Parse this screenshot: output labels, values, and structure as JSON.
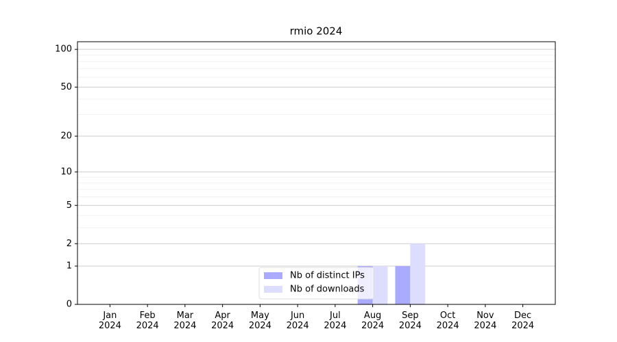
{
  "chart_data": {
    "type": "bar",
    "title": "rmio 2024",
    "categories": [
      "Jan\n2024",
      "Feb\n2024",
      "Mar\n2024",
      "Apr\n2024",
      "May\n2024",
      "Jun\n2024",
      "Jul\n2024",
      "Aug\n2024",
      "Sep\n2024",
      "Oct\n2024",
      "Nov\n2024",
      "Dec\n2024"
    ],
    "series": [
      {
        "name": "Nb of distinct IPs",
        "color": "#aaaaff",
        "values": [
          0,
          0,
          0,
          0,
          0,
          0,
          0,
          1,
          1,
          0,
          0,
          0
        ]
      },
      {
        "name": "Nb of downloads",
        "color": "#ddddff",
        "values": [
          0,
          0,
          0,
          0,
          0,
          0,
          0,
          1,
          2,
          0,
          0,
          0
        ]
      }
    ],
    "yscale": "log1p",
    "ylim": [
      0,
      115
    ],
    "yticks": [
      0,
      1,
      2,
      5,
      10,
      20,
      50,
      100
    ],
    "minor_yticks": [
      3,
      4,
      6,
      7,
      8,
      9,
      30,
      40,
      60,
      70,
      80,
      90
    ],
    "grid": true,
    "legend": "lower center"
  }
}
